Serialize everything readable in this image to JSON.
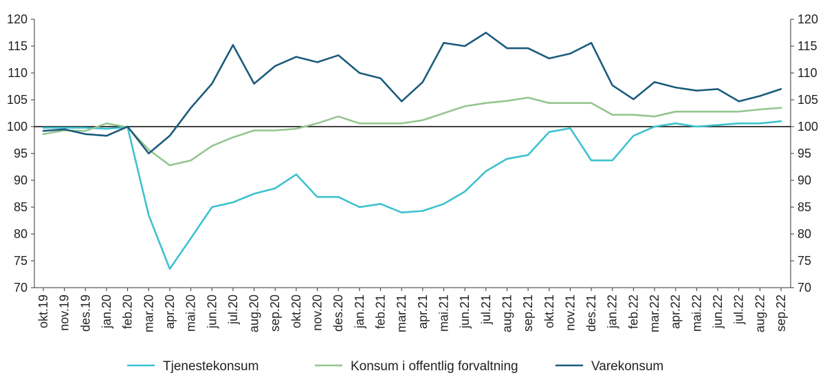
{
  "chart_data": {
    "type": "line",
    "title": "",
    "xlabel": "",
    "ylabel": "",
    "ylim": [
      70,
      120
    ],
    "yticks": [
      70,
      75,
      80,
      85,
      90,
      95,
      100,
      105,
      110,
      115,
      120
    ],
    "ytick_labels": [
      "70",
      "75",
      "80",
      "85",
      "90",
      "95",
      "100",
      "105",
      "110",
      "115",
      "120"
    ],
    "reference_line": 100,
    "grid": false,
    "legend_position": "bottom",
    "categories": [
      "okt.19",
      "nov.19",
      "des.19",
      "jan.20",
      "feb.20",
      "mar.20",
      "apr.20",
      "mai.20",
      "jun.20",
      "jul.20",
      "aug.20",
      "sep.20",
      "okt.20",
      "nov.20",
      "des.20",
      "jan.21",
      "feb.21",
      "mar.21",
      "apr.21",
      "mai.21",
      "jun.21",
      "jul.21",
      "aug.21",
      "sep.21",
      "okt.21",
      "nov.21",
      "des.21",
      "jan.22",
      "feb.22",
      "mar.22",
      "apr.22",
      "mai.22",
      "jun.22",
      "jul.22",
      "aug.22",
      "sep.22"
    ],
    "series": [
      {
        "name": "Tjenestekonsum",
        "color": "#3cc1cf",
        "values": [
          99.8,
          99.8,
          99.8,
          99.6,
          99.9,
          83.5,
          73.5,
          79.2,
          85.0,
          85.9,
          87.5,
          88.5,
          91.1,
          86.9,
          86.9,
          85.0,
          85.6,
          84.0,
          84.3,
          85.6,
          87.9,
          91.7,
          94.0,
          94.7,
          99.0,
          99.7,
          93.7,
          93.7,
          98.3,
          100.0,
          100.6,
          100.0,
          100.3,
          100.6,
          100.6,
          101.0
        ]
      },
      {
        "name": "Konsum i offentlig forvaltning",
        "color": "#94c58e",
        "values": [
          98.6,
          99.3,
          99.2,
          100.6,
          99.9,
          95.7,
          92.8,
          93.7,
          96.4,
          98.0,
          99.3,
          99.3,
          99.6,
          100.6,
          101.9,
          100.6,
          100.6,
          100.6,
          101.2,
          102.5,
          103.8,
          104.4,
          104.8,
          105.4,
          104.4,
          104.4,
          104.4,
          102.2,
          102.2,
          101.9,
          102.8,
          102.8,
          102.8,
          102.8,
          103.2,
          103.5
        ]
      },
      {
        "name": "Varekonsum",
        "color": "#1a5a7c",
        "values": [
          99.2,
          99.5,
          98.6,
          98.3,
          100.0,
          95.0,
          98.3,
          103.5,
          108.0,
          115.2,
          108.0,
          111.3,
          113.0,
          112.0,
          113.3,
          110.0,
          109.0,
          104.7,
          108.3,
          115.6,
          115.0,
          117.5,
          114.6,
          114.6,
          112.7,
          113.6,
          115.6,
          107.7,
          105.1,
          108.3,
          107.3,
          106.7,
          107.0,
          104.7,
          105.7,
          107.0
        ]
      }
    ]
  }
}
